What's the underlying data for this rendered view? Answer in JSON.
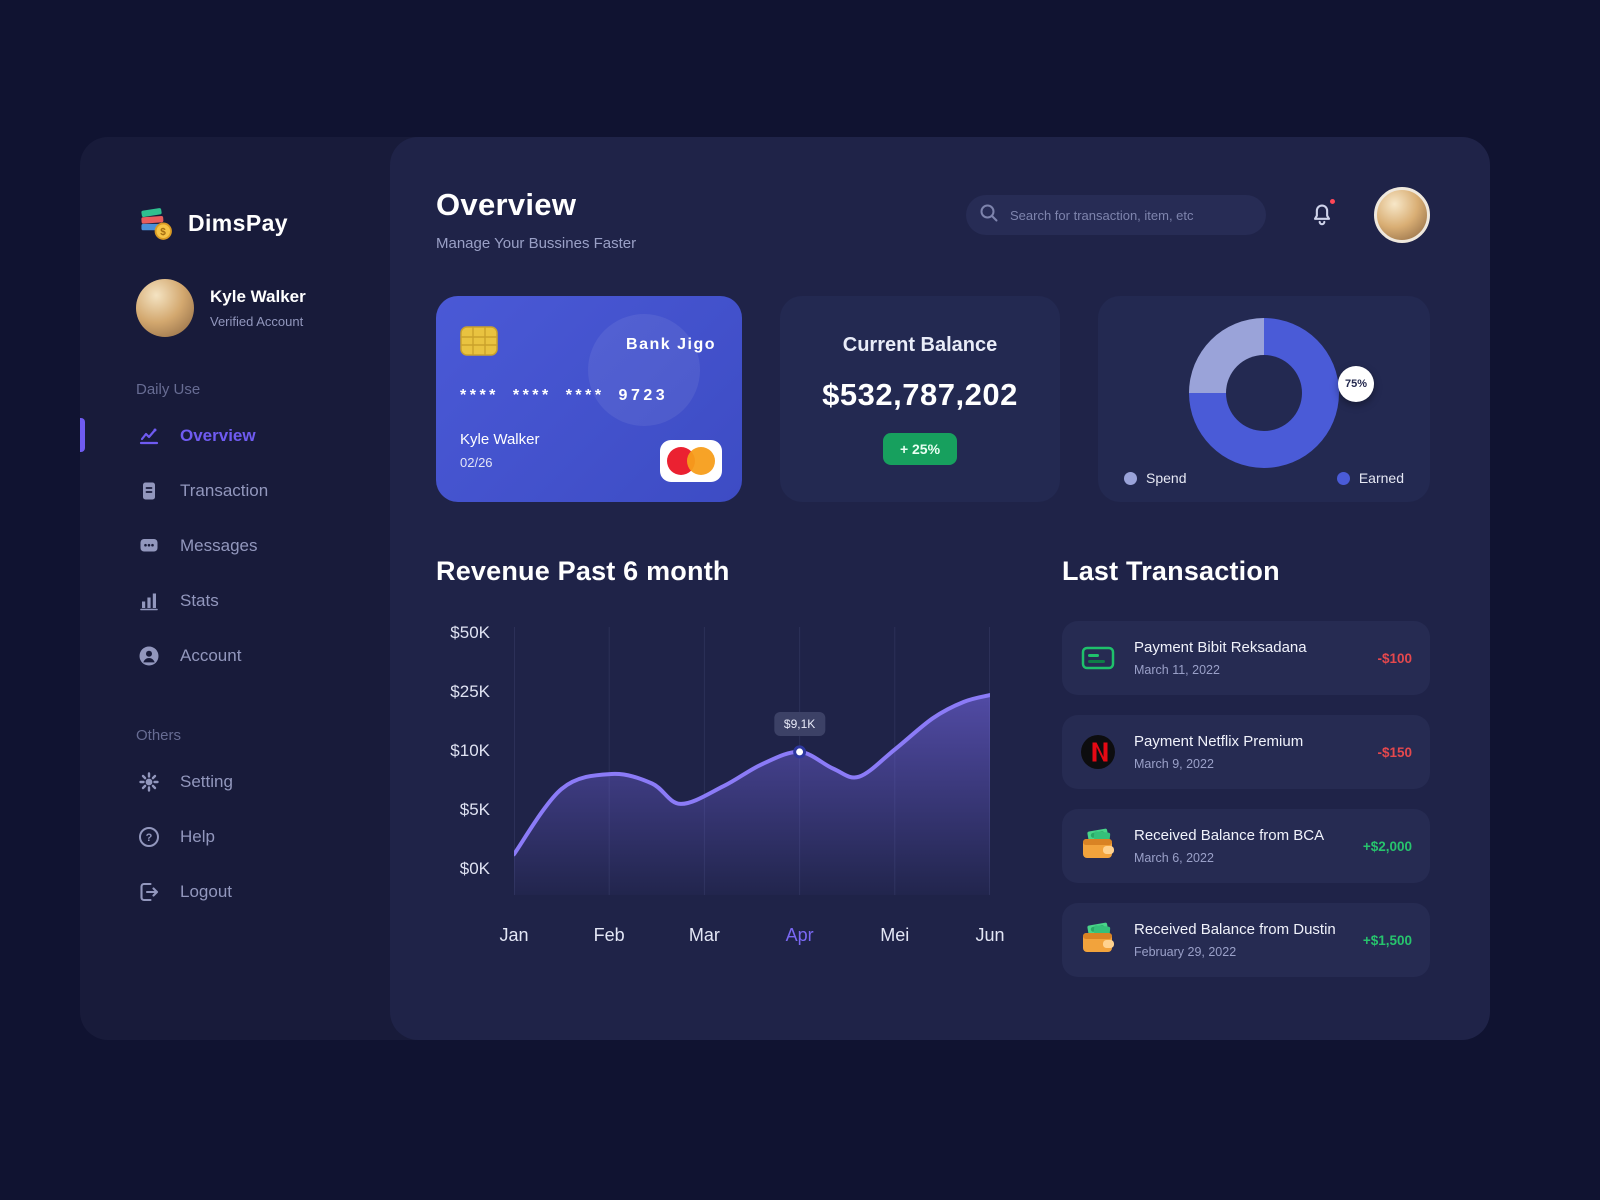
{
  "app": {
    "name": "DimsPay"
  },
  "colors": {
    "accent_purple": "#6f5bf1",
    "line_purple": "#8b7bf7",
    "badge_green": "#17a05e",
    "positive_green": "#27c46d",
    "negative_red": "#e5484d",
    "card_blue": "#4a59d6"
  },
  "sidebar": {
    "user": {
      "name": "Kyle Walker",
      "status": "Verified Account"
    },
    "sections": [
      {
        "label": "Daily Use",
        "items": [
          {
            "label": "Overview",
            "icon": "overview-icon",
            "active": true
          },
          {
            "label": "Transaction",
            "icon": "transaction-icon",
            "active": false
          },
          {
            "label": "Messages",
            "icon": "messages-icon",
            "active": false
          },
          {
            "label": "Stats",
            "icon": "stats-icon",
            "active": false
          },
          {
            "label": "Account",
            "icon": "account-icon",
            "active": false
          }
        ]
      },
      {
        "label": "Others",
        "items": [
          {
            "label": "Setting",
            "icon": "setting-icon",
            "active": false
          },
          {
            "label": "Help",
            "icon": "help-icon",
            "active": false
          },
          {
            "label": "Logout",
            "icon": "logout-icon",
            "active": false
          }
        ]
      }
    ]
  },
  "header": {
    "title": "Overview",
    "subtitle": "Manage Your Bussines Faster",
    "search_placeholder": "Search for transaction, item, etc",
    "bell_badge": true
  },
  "bank_card": {
    "bank_name": "Bank Jigo",
    "card_number": "**** **** **** 9723",
    "holder": "Kyle Walker",
    "expiry": "02/26"
  },
  "balance_card": {
    "title": "Current Balance",
    "amount": "$532,787,202",
    "change_badge": "+ 25%"
  },
  "chart_data": [
    {
      "type": "pie",
      "subtype": "donut",
      "badge_label": "75%",
      "slices": [
        {
          "label": "Spend",
          "value": 25,
          "color": "#9aa3d9"
        },
        {
          "label": "Earned",
          "value": 75,
          "color": "#4a5bd7"
        }
      ],
      "legend_position": "bottom"
    },
    {
      "type": "area",
      "title": "Revenue Past 6 month",
      "x_labels": [
        "Jan",
        "Feb",
        "Mar",
        "Apr",
        "Mei",
        "Jun"
      ],
      "y_tick_labels": [
        "$50K",
        "$25K",
        "$10K",
        "$5K",
        "$0K"
      ],
      "note": "y tick labels are evenly spaced (non-linear scale); vertical gridlines only",
      "series": [
        {
          "name": "Revenue",
          "unit": "K USD",
          "x": [
            "Jan",
            "Feb",
            "Mar",
            "Apr",
            "Mei",
            "Jun"
          ],
          "values": [
            1,
            8,
            5.5,
            9.1,
            10.5,
            24
          ]
        }
      ],
      "highlight": {
        "x_label": "Apr",
        "index": 3,
        "value_label": "$9,1K",
        "point_pct": [
          60,
          47.4
        ]
      },
      "shape_points_pct": [
        [
          0,
          85
        ],
        [
          10,
          61
        ],
        [
          20.5,
          55.5
        ],
        [
          29,
          59
        ],
        [
          35,
          66.5
        ],
        [
          44,
          60
        ],
        [
          52,
          52
        ],
        [
          60,
          47.4
        ],
        [
          67,
          53.5
        ],
        [
          72.5,
          56.5
        ],
        [
          80,
          46.5
        ],
        [
          88,
          35
        ],
        [
          94.5,
          29
        ],
        [
          100,
          26.5
        ]
      ],
      "line_color": "#8b7bf7"
    }
  ],
  "transactions": {
    "title": "Last Transaction",
    "items": [
      {
        "title": "Payment Bibit Reksadana",
        "date": "March 11, 2022",
        "amount": "-$100",
        "direction": "out",
        "icon": "bibit-card-icon"
      },
      {
        "title": "Payment Netflix Premium",
        "date": "March 9, 2022",
        "amount": "-$150",
        "direction": "out",
        "icon": "netflix-icon"
      },
      {
        "title": "Received Balance from BCA",
        "date": "March 6, 2022",
        "amount": "+$2,000",
        "direction": "in",
        "icon": "wallet-icon"
      },
      {
        "title": "Received Balance from Dustin",
        "date": "February 29, 2022",
        "amount": "+$1,500",
        "direction": "in",
        "icon": "wallet-icon"
      }
    ]
  }
}
